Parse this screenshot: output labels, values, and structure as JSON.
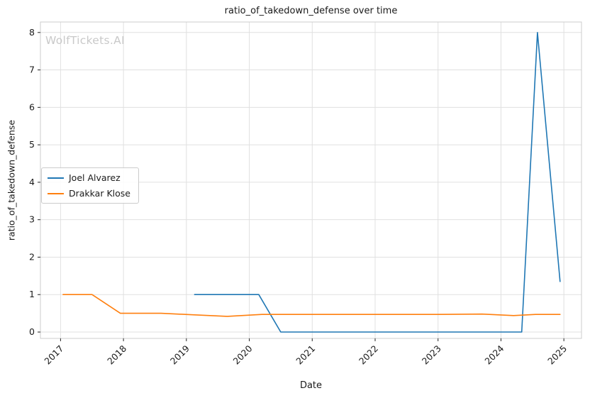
{
  "title": "ratio_of_takedown_defense over time",
  "watermark": "WolfTickets.AI",
  "axes": {
    "xlabel": "Date",
    "ylabel": "ratio_of_takedown_defense"
  },
  "chart_data": {
    "type": "line",
    "title": "ratio_of_takedown_defense over time",
    "xlabel": "Date",
    "ylabel": "ratio_of_takedown_defense",
    "grid": true,
    "legend_position": "center left",
    "xticks": [
      2017,
      2018,
      2019,
      2020,
      2021,
      2022,
      2023,
      2024,
      2025
    ],
    "yticks": [
      0,
      1,
      2,
      3,
      4,
      5,
      6,
      7,
      8
    ],
    "xlim": [
      2016.68,
      2025.28
    ],
    "ylim": [
      -0.17,
      8.28
    ],
    "colors": {
      "grid": "#e0e0e0",
      "spine": "#cccccc",
      "tick": "#262626",
      "text": "#1a1a1a"
    },
    "series": [
      {
        "name": "Joel Alvarez",
        "color": "#1f77b4",
        "points": [
          [
            2019.13,
            1.0
          ],
          [
            2020.15,
            1.0
          ],
          [
            2020.5,
            0.0
          ],
          [
            2024.33,
            0.0
          ],
          [
            2024.58,
            8.0
          ],
          [
            2024.94,
            1.35
          ]
        ]
      },
      {
        "name": "Drakkar Klose",
        "color": "#ff7f0e",
        "points": [
          [
            2017.04,
            1.0
          ],
          [
            2017.5,
            1.0
          ],
          [
            2017.95,
            0.5
          ],
          [
            2018.6,
            0.5
          ],
          [
            2019.1,
            0.46
          ],
          [
            2019.65,
            0.42
          ],
          [
            2020.2,
            0.47
          ],
          [
            2021.0,
            0.47
          ],
          [
            2022.0,
            0.47
          ],
          [
            2023.0,
            0.47
          ],
          [
            2023.7,
            0.48
          ],
          [
            2024.2,
            0.44
          ],
          [
            2024.55,
            0.47
          ],
          [
            2024.94,
            0.47
          ]
        ]
      }
    ]
  }
}
